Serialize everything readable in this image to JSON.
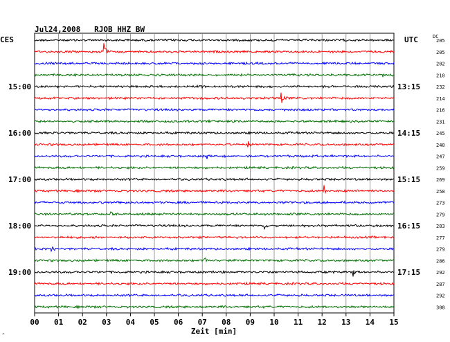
{
  "chart_data": {
    "type": "line",
    "title": "Jul24,2008   RJOB HHZ BW",
    "left_timezone": "CES",
    "right_timezone": "UTC",
    "right_column_header": "DC",
    "xlabel": "Zeit [min]",
    "x_ticks": [
      "00",
      "01",
      "02",
      "03",
      "04",
      "05",
      "06",
      "07",
      "08",
      "09",
      "10",
      "11",
      "12",
      "13",
      "14",
      "15"
    ],
    "xlim": [
      0,
      15
    ],
    "grid": true,
    "trace_colors": [
      "#000000",
      "#ff0000",
      "#0000ff",
      "#007000"
    ],
    "left_hour_labels": [
      {
        "trace": 4,
        "label": "15:00"
      },
      {
        "trace": 8,
        "label": "16:00"
      },
      {
        "trace": 12,
        "label": "17:00"
      },
      {
        "trace": 16,
        "label": "18:00"
      },
      {
        "trace": 20,
        "label": "19:00"
      }
    ],
    "right_hour_labels": [
      {
        "trace": 4,
        "label": "13:15"
      },
      {
        "trace": 8,
        "label": "14:15"
      },
      {
        "trace": 12,
        "label": "15:15"
      },
      {
        "trace": 16,
        "label": "16:15"
      },
      {
        "trace": 20,
        "label": "17:15"
      }
    ],
    "dc_offsets": [
      "205",
      "205",
      "202",
      "210",
      "232",
      "214",
      "216",
      "231",
      "245",
      "240",
      "247",
      "259",
      "269",
      "258",
      "273",
      "279",
      "283",
      "277",
      "279",
      "286",
      "292",
      "287",
      "292",
      "308"
    ],
    "events": [
      {
        "trace": 1,
        "minute": 2.9,
        "amp": 12
      },
      {
        "trace": 3,
        "minute": 14.5,
        "amp": 5
      },
      {
        "trace": 4,
        "minute": 6.9,
        "amp": 5
      },
      {
        "trace": 5,
        "minute": 10.3,
        "amp": 9
      },
      {
        "trace": 9,
        "minute": 8.9,
        "amp": 9
      },
      {
        "trace": 10,
        "minute": 7.2,
        "amp": 5
      },
      {
        "trace": 13,
        "minute": 12.1,
        "amp": 8
      },
      {
        "trace": 15,
        "minute": 3.2,
        "amp": 4
      },
      {
        "trace": 16,
        "minute": 9.6,
        "amp": 7
      },
      {
        "trace": 18,
        "minute": 0.7,
        "amp": 4
      },
      {
        "trace": 19,
        "minute": 7.1,
        "amp": 6
      },
      {
        "trace": 20,
        "minute": 13.3,
        "amp": 7
      }
    ]
  }
}
